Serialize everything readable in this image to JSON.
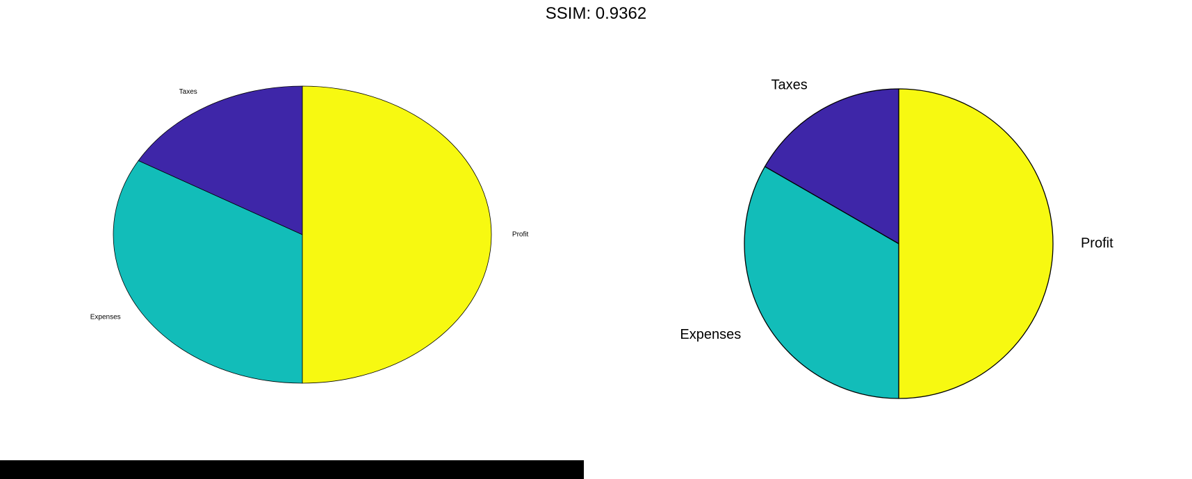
{
  "title": "SSIM: 0.9362",
  "chart_data": [
    {
      "type": "pie",
      "title": "",
      "slices": [
        {
          "label": "Profit",
          "value": 50,
          "color": "#f7f911"
        },
        {
          "label": "Expenses",
          "value": 33.3,
          "color": "#12bdb9"
        },
        {
          "label": "Taxes",
          "value": 16.7,
          "color": "#3e26a8"
        }
      ],
      "start_angle": "top (12 o'clock), clockwise",
      "legend": "none",
      "label_size": "small",
      "aspect": "stretched"
    },
    {
      "type": "pie",
      "title": "",
      "slices": [
        {
          "label": "Profit",
          "value": 50,
          "color": "#f7f911"
        },
        {
          "label": "Expenses",
          "value": 33.3,
          "color": "#12bdb9"
        },
        {
          "label": "Taxes",
          "value": 16.7,
          "color": "#3e26a8"
        }
      ],
      "start_angle": "top (12 o'clock), clockwise",
      "legend": "none",
      "label_size": "large",
      "aspect": "equal"
    }
  ]
}
